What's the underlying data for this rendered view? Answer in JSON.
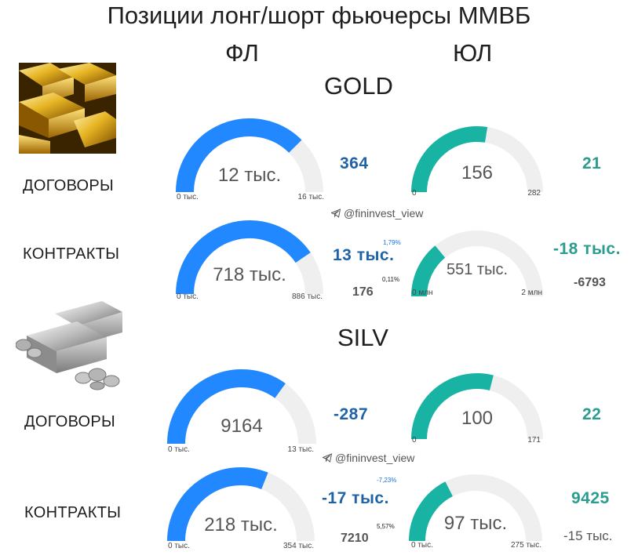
{
  "header": {
    "title": "Позиции лонг/шорт фьючерсы ММВБ",
    "col_fl": "ФЛ",
    "col_ul": "ЮЛ"
  },
  "watermark": "@fininvest_view",
  "colors": {
    "fl_gauge": "#2188ff",
    "ul_gauge": "#19b3a3",
    "track": "#efefef"
  },
  "sections": [
    {
      "name": "GOLD",
      "rows": [
        {
          "label": "ДОГОВОРЫ",
          "fl": {
            "value": "12 тыс.",
            "min": "0 тыс.",
            "max": "16 тыс.",
            "delta": "364",
            "fraction": 0.75
          },
          "ul": {
            "value": "156",
            "min": "0",
            "max": "282",
            "delta": "21",
            "fraction": 0.55
          }
        },
        {
          "label": "КОНТРАКТЫ",
          "fl": {
            "value": "718 тыс.",
            "min": "0 тыс.",
            "max": "886 тыс.",
            "delta": "13 тыс.",
            "pct_top": "1,79%",
            "pct_bottom": "0,11%",
            "sub": "176",
            "fraction": 0.81
          },
          "ul": {
            "value": "551 тыс.",
            "min": "0 млн",
            "max": "2 млн",
            "delta": "-18 тыс.",
            "sub": "-6793",
            "fraction": 0.28
          }
        }
      ]
    },
    {
      "name": "SILV",
      "rows": [
        {
          "label": "ДОГОВОРЫ",
          "fl": {
            "value": "9164",
            "min": "0 тыс.",
            "max": "13 тыс.",
            "delta": "-287",
            "fraction": 0.7
          },
          "ul": {
            "value": "100",
            "min": "0",
            "max": "171",
            "delta": "22",
            "fraction": 0.58
          }
        },
        {
          "label": "КОНТРАКТЫ",
          "fl": {
            "value": "218 тыс.",
            "min": "0 тыс.",
            "max": "354 тыс.",
            "delta": "-17 тыс.",
            "pct_top": "-7,23%",
            "pct_bottom": "5,57%",
            "sub": "7210",
            "fraction": 0.62
          },
          "ul": {
            "value": "97 тыс.",
            "min": "0 тыс.",
            "max": "275 тыс.",
            "delta": "9425",
            "sub": "-15 тыс.",
            "fraction": 0.35
          }
        }
      ]
    }
  ]
}
